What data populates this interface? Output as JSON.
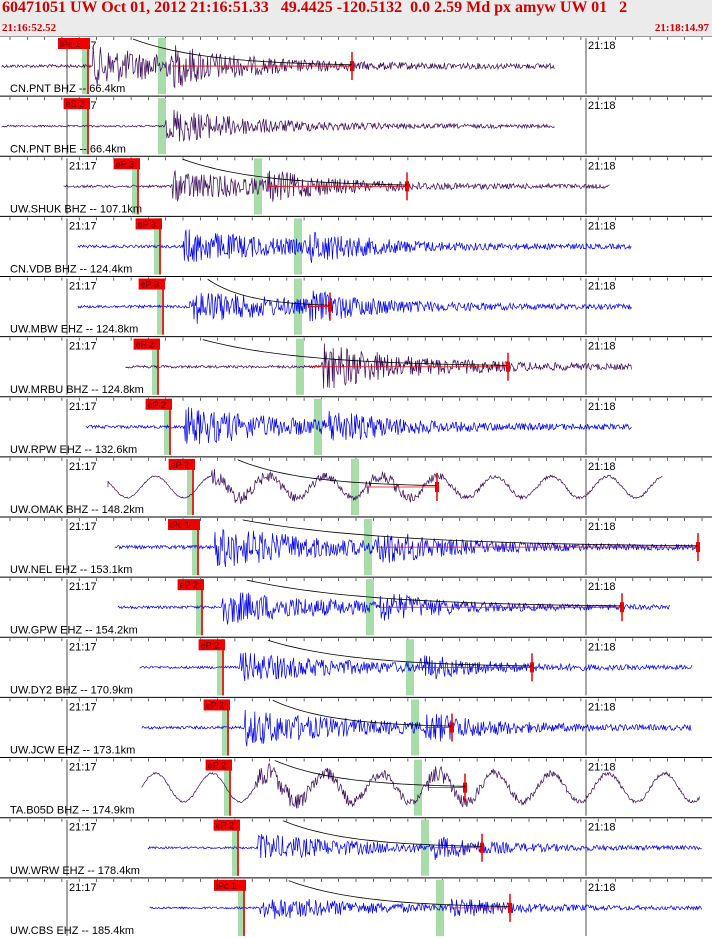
{
  "header": {
    "title": "60471051 UW Oct 01, 2012 21:16:51.33   49.4425 -120.5132  0.0 2.59 Md px amyw UW 01   2",
    "start_time": "21:16:52.52",
    "end_time": "21:18:14.97"
  },
  "minute_labels": [
    "21:17",
    "21:18"
  ],
  "colors": {
    "trace_dark": "#3a0a5a",
    "trace_blue": "#0000ee",
    "pick_red": "#ee0000",
    "s_pick_green": "#a8dca8",
    "header_text": "#d00000"
  },
  "traces": [
    {
      "station": "CN.PNT BHZ -- 66.4km",
      "pick": "iPc 1",
      "color": "dark"
    },
    {
      "station": "CN.PNT BHE -- 66.4km",
      "pick": "eS 2",
      "color": "dark"
    },
    {
      "station": "UW.SHUK BHZ -- 107.1km",
      "pick": "eP 3",
      "color": "dark"
    },
    {
      "station": "CN.VDB BHZ -- 124.4km",
      "pick": "eP 3",
      "color": "blue"
    },
    {
      "station": "UW.MBW EHZ -- 124.8km",
      "pick": "eP 3",
      "color": "blue"
    },
    {
      "station": "UW.MRBU BHZ -- 124.8km",
      "pick": "eP 2",
      "color": "dark"
    },
    {
      "station": "UW.RPW EHZ -- 132.6km",
      "pick": "eP 2",
      "color": "blue"
    },
    {
      "station": "UW.OMAK BHZ -- 148.2km",
      "pick": "eP 2",
      "color": "dark"
    },
    {
      "station": "UW.NEL EHZ -- 153.1km",
      "pick": "iPc 1",
      "color": "blue"
    },
    {
      "station": "UW.GPW EHZ -- 154.2km",
      "pick": "eP 2",
      "color": "blue"
    },
    {
      "station": "UW.DY2 BHZ -- 170.9km",
      "pick": "eP 2",
      "color": "blue"
    },
    {
      "station": "UW.JCW EHZ -- 173.1km",
      "pick": "eP 2",
      "color": "blue"
    },
    {
      "station": "TA.B05D BHZ -- 174.9km",
      "pick": "eP 2",
      "color": "dark"
    },
    {
      "station": "UW.WRW EHZ -- 178.4km",
      "pick": "eP 2",
      "color": "blue"
    },
    {
      "station": "UW.CBS EHZ -- 185.4km",
      "pick": "iPc 1",
      "color": "blue"
    }
  ]
}
